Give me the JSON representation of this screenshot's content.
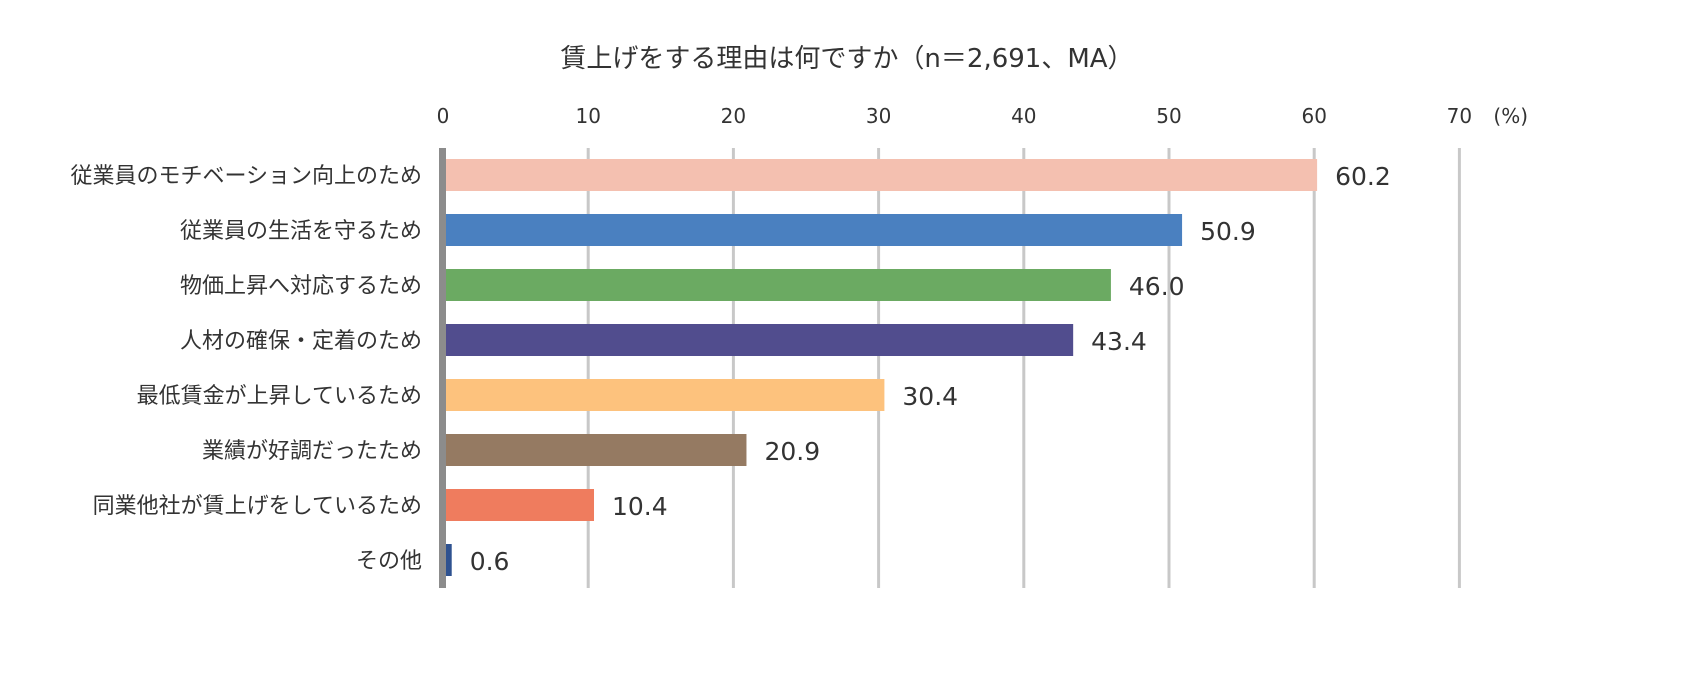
{
  "chart_data": {
    "type": "bar",
    "orientation": "horizontal",
    "title": "賃上げをする理由は何ですか（n＝2,691、MA）",
    "unit_label": "(%)",
    "xlim": [
      0,
      70
    ],
    "ticks": [
      0,
      10,
      20,
      30,
      40,
      50,
      60,
      70
    ],
    "grid": true,
    "categories": [
      "従業員のモチベーション向上のため",
      "従業員の生活を守るため",
      "物価上昇へ対応するため",
      "人材の確保・定着のため",
      "最低賃金が上昇しているため",
      "業績が好調だったため",
      "同業他社が賃上げをしているため",
      "その他"
    ],
    "values": [
      60.2,
      50.9,
      46.0,
      43.4,
      30.4,
      20.9,
      10.4,
      0.6
    ],
    "value_labels": [
      "60.2",
      "50.9",
      "46.0",
      "43.4",
      "30.4",
      "20.9",
      "10.4",
      "0.6"
    ],
    "colors": [
      "#F4C0B0",
      "#4A80C0",
      "#6BAA62",
      "#514D8E",
      "#FDC27D",
      "#957A62",
      "#EF7C5E",
      "#2F5290"
    ]
  }
}
